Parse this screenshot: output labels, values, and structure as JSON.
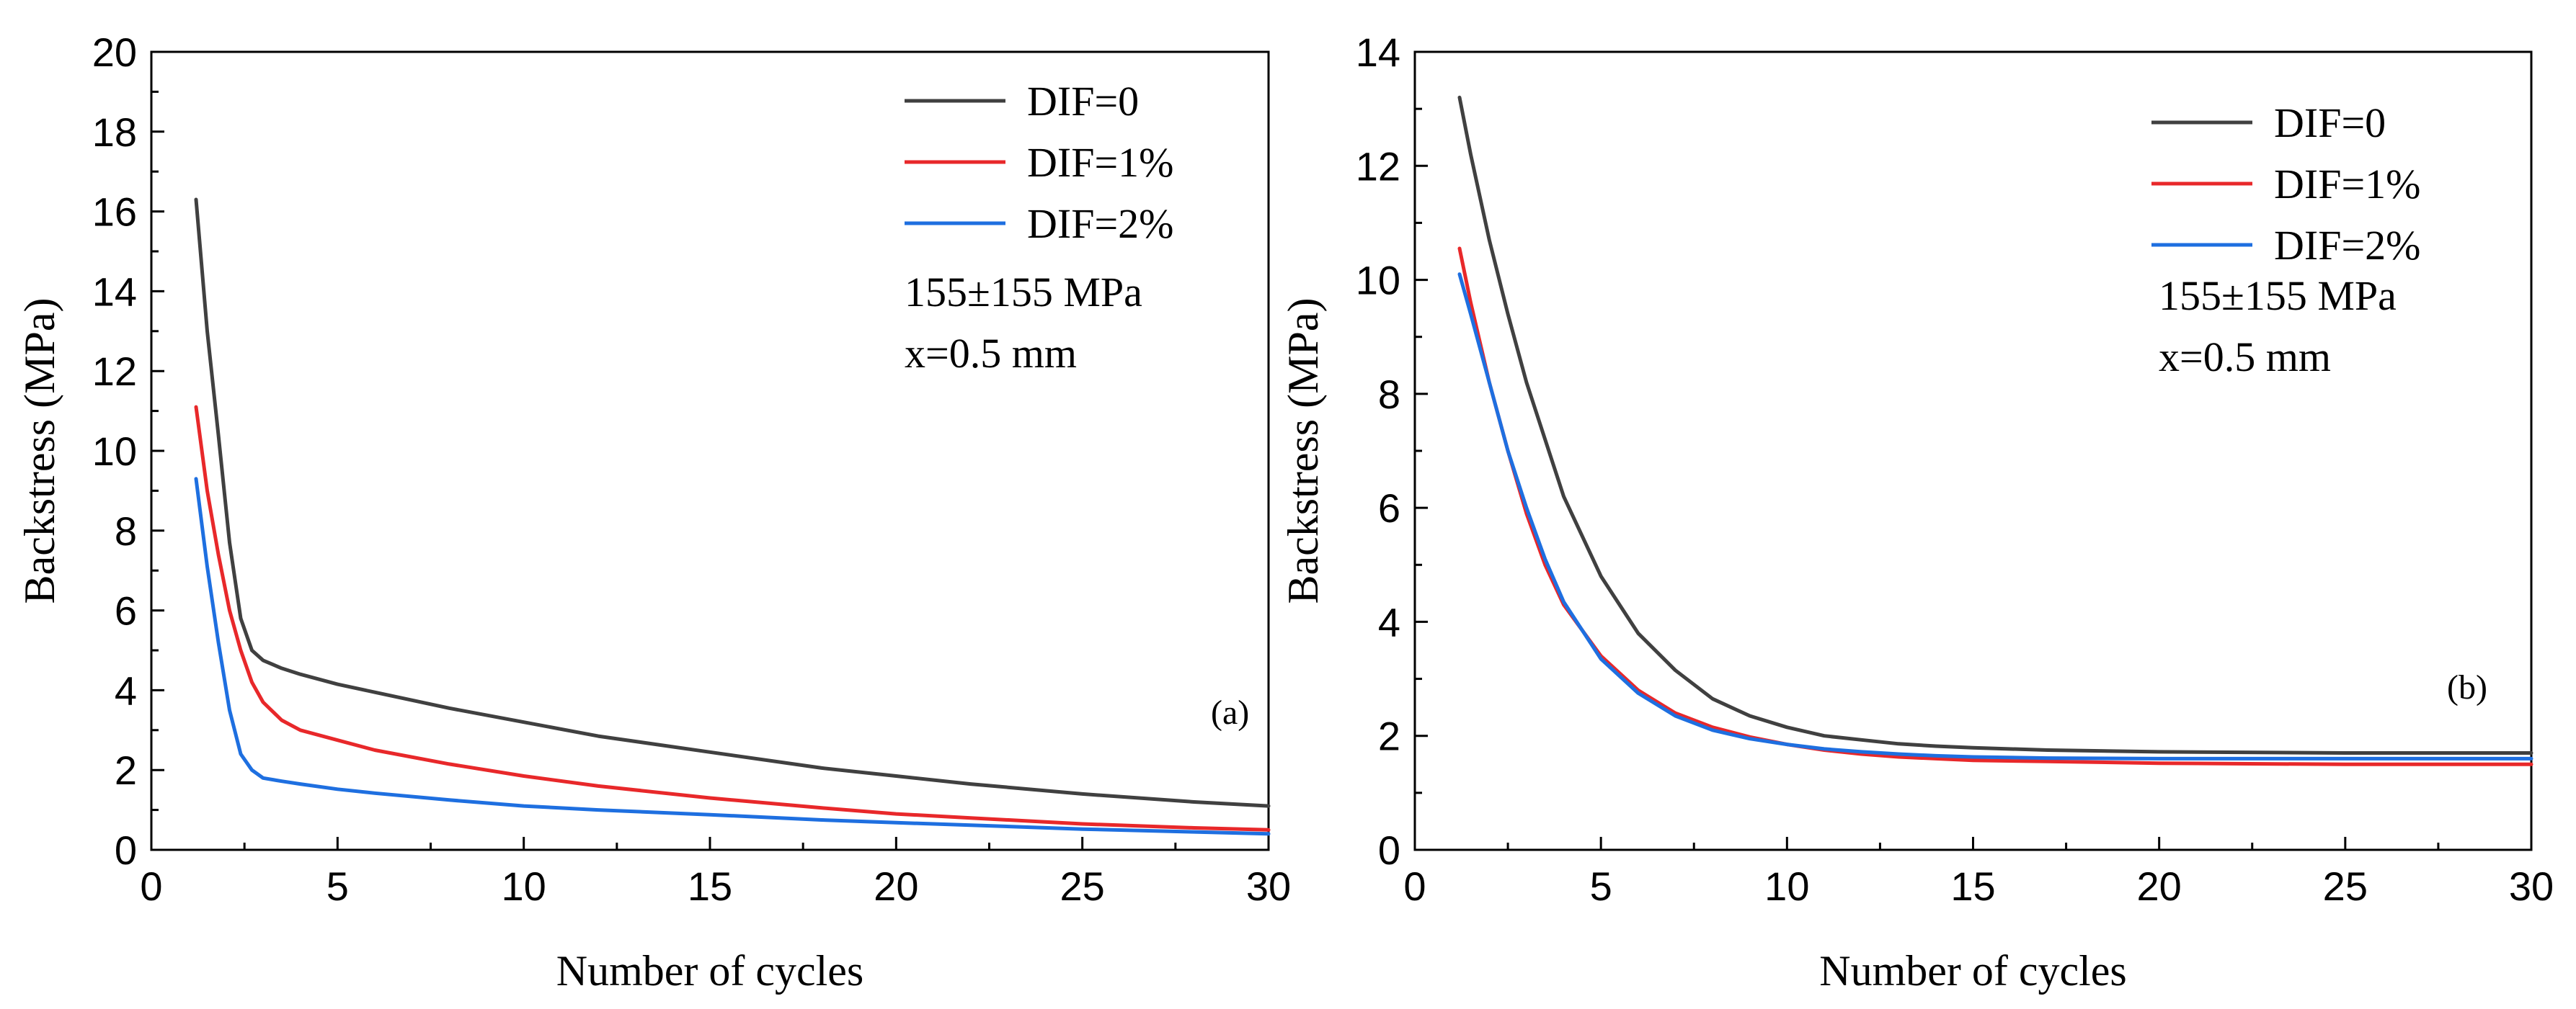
{
  "chart_data": [
    {
      "type": "line",
      "xlabel": "Number of cycles",
      "ylabel": "Backstress (MPa)",
      "xlim": [
        0,
        30
      ],
      "ylim": [
        0,
        20
      ],
      "xticks": [
        0,
        5,
        10,
        15,
        20,
        25,
        30
      ],
      "yticks": [
        0,
        2,
        4,
        6,
        8,
        10,
        12,
        14,
        16,
        18,
        20
      ],
      "legend_position": "top-right",
      "annotations": [
        "155±155 MPa",
        "x=0.5 mm"
      ],
      "panel_label": "(a)",
      "grid": false,
      "series": [
        {
          "name": "DIF=0",
          "color": "#404040",
          "x": [
            1.2,
            1.5,
            1.8,
            2.1,
            2.4,
            2.7,
            3,
            3.5,
            4,
            5,
            6,
            8,
            10,
            12,
            15,
            18,
            20,
            22,
            25,
            28,
            30
          ],
          "y": [
            16.3,
            13.0,
            10.4,
            7.7,
            5.8,
            5.0,
            4.75,
            4.55,
            4.4,
            4.15,
            3.95,
            3.55,
            3.2,
            2.85,
            2.45,
            2.05,
            1.85,
            1.65,
            1.4,
            1.2,
            1.1
          ]
        },
        {
          "name": "DIF=1%",
          "color": "#e8282a",
          "x": [
            1.2,
            1.5,
            1.8,
            2.1,
            2.4,
            2.7,
            3,
            3.5,
            4,
            5,
            6,
            8,
            10,
            12,
            15,
            18,
            20,
            22,
            25,
            28,
            30
          ],
          "y": [
            11.1,
            9.0,
            7.4,
            6.0,
            5.0,
            4.2,
            3.7,
            3.25,
            3.0,
            2.75,
            2.5,
            2.15,
            1.85,
            1.6,
            1.3,
            1.05,
            0.9,
            0.8,
            0.65,
            0.55,
            0.5
          ]
        },
        {
          "name": "DIF=2%",
          "color": "#1e6fe0",
          "x": [
            1.2,
            1.5,
            1.8,
            2.1,
            2.4,
            2.7,
            3,
            3.5,
            4,
            5,
            6,
            8,
            10,
            12,
            15,
            18,
            20,
            22,
            25,
            28,
            30
          ],
          "y": [
            9.3,
            7.1,
            5.2,
            3.5,
            2.4,
            2.0,
            1.8,
            1.72,
            1.65,
            1.52,
            1.42,
            1.25,
            1.1,
            1.0,
            0.88,
            0.75,
            0.68,
            0.62,
            0.52,
            0.45,
            0.4
          ]
        }
      ]
    },
    {
      "type": "line",
      "xlabel": "Number of cycles",
      "ylabel": "Backstress (MPa)",
      "xlim": [
        0,
        30
      ],
      "ylim": [
        0,
        14
      ],
      "xticks": [
        0,
        5,
        10,
        15,
        20,
        25,
        30
      ],
      "yticks": [
        0,
        2,
        4,
        6,
        8,
        10,
        12,
        14
      ],
      "legend_position": "top-right",
      "annotations": [
        "155±155 MPa",
        "x=0.5 mm"
      ],
      "panel_label": "(b)",
      "grid": false,
      "series": [
        {
          "name": "DIF=0",
          "color": "#404040",
          "x": [
            1.2,
            1.5,
            2,
            2.5,
            3,
            3.5,
            4,
            5,
            6,
            7,
            8,
            9,
            10,
            11,
            12,
            13,
            14,
            15,
            17,
            20,
            25,
            30
          ],
          "y": [
            13.2,
            12.2,
            10.7,
            9.4,
            8.2,
            7.2,
            6.2,
            4.8,
            3.8,
            3.15,
            2.65,
            2.35,
            2.15,
            2.0,
            1.93,
            1.86,
            1.82,
            1.79,
            1.75,
            1.72,
            1.7,
            1.7
          ]
        },
        {
          "name": "DIF=1%",
          "color": "#e8282a",
          "x": [
            1.2,
            1.5,
            2,
            2.5,
            3,
            3.5,
            4,
            5,
            6,
            7,
            8,
            9,
            10,
            11,
            12,
            13,
            14,
            15,
            17,
            20,
            25,
            30
          ],
          "y": [
            10.55,
            9.6,
            8.2,
            7.0,
            5.9,
            5.0,
            4.3,
            3.4,
            2.8,
            2.4,
            2.15,
            1.98,
            1.85,
            1.75,
            1.68,
            1.63,
            1.6,
            1.57,
            1.55,
            1.52,
            1.5,
            1.5
          ]
        },
        {
          "name": "DIF=2%",
          "color": "#1e6fe0",
          "x": [
            1.2,
            1.5,
            2,
            2.5,
            3,
            3.5,
            4,
            5,
            6,
            7,
            8,
            9,
            10,
            11,
            12,
            13,
            14,
            15,
            17,
            20,
            25,
            30
          ],
          "y": [
            10.1,
            9.4,
            8.2,
            7.0,
            6.0,
            5.1,
            4.35,
            3.35,
            2.75,
            2.35,
            2.1,
            1.95,
            1.85,
            1.77,
            1.72,
            1.68,
            1.65,
            1.63,
            1.61,
            1.6,
            1.6,
            1.6
          ]
        }
      ]
    }
  ]
}
